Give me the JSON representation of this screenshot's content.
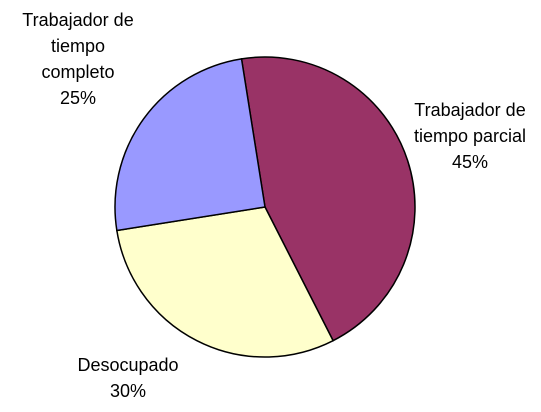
{
  "chart_data": {
    "type": "pie",
    "categories": [
      "Trabajador de tiempo parcial",
      "Desocupado",
      "Trabajador de tiempo completo"
    ],
    "values": [
      45,
      30,
      25
    ],
    "value_labels": [
      "45%",
      "30%",
      "25%"
    ],
    "colors": [
      "#993366",
      "#ffffcc",
      "#9999ff"
    ]
  }
}
